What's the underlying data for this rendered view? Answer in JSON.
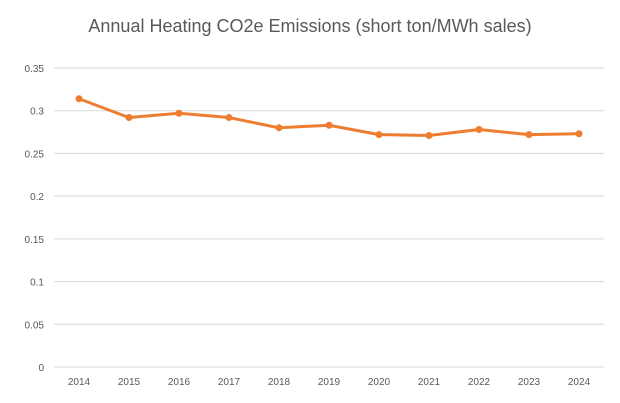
{
  "chart_data": {
    "type": "line",
    "title": "Annual Heating CO2e Emissions (short ton/MWh sales)",
    "xlabel": "",
    "ylabel": "",
    "categories": [
      "2014",
      "2015",
      "2016",
      "2017",
      "2018",
      "2019",
      "2020",
      "2021",
      "2022",
      "2023",
      "2024"
    ],
    "series": [
      {
        "values": [
          0.314,
          0.292,
          0.297,
          0.292,
          0.28,
          0.283,
          0.272,
          0.271,
          0.278,
          0.272,
          0.273
        ]
      }
    ],
    "ylim": [
      0,
      0.35
    ],
    "yticks": [
      "0",
      "0.05",
      "0.1",
      "0.15",
      "0.2",
      "0.25",
      "0.3",
      "0.35"
    ],
    "ytick_values": [
      0,
      0.05,
      0.1,
      0.15,
      0.2,
      0.25,
      0.3,
      0.35
    ],
    "grid": true,
    "legend": "none",
    "colors": {
      "series": "#ED7D31",
      "grid": "#D9D9D9",
      "text": "#595959"
    }
  }
}
